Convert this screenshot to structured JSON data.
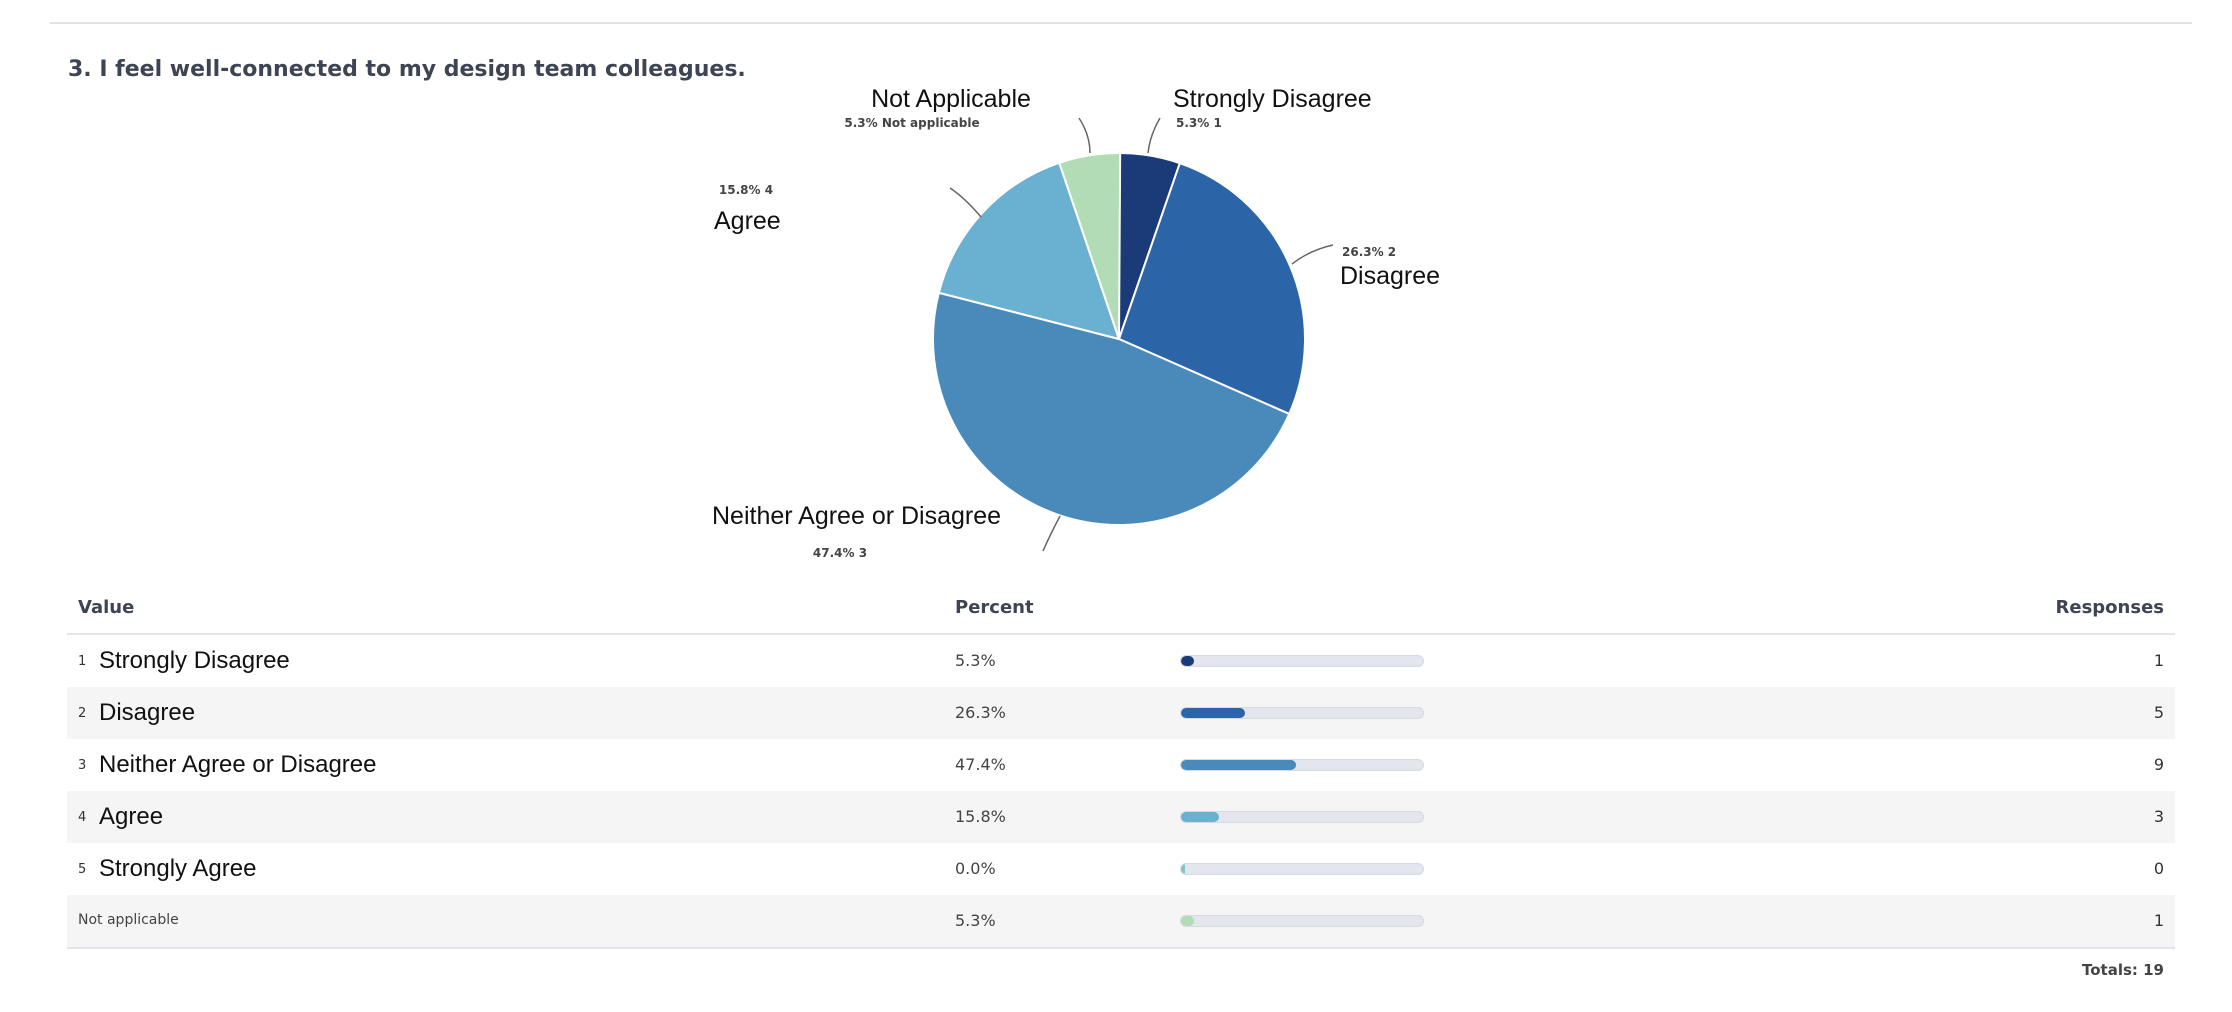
{
  "question": "3. I feel well-connected to my design team colleagues.",
  "chart_data": {
    "type": "pie",
    "start": "top",
    "direction": "clockwise",
    "slices": [
      {
        "label": "Strongly Disagree",
        "code": "1",
        "percent": 5.3,
        "detail": "5.3% 1",
        "color": "#1b3a78"
      },
      {
        "label": "Disagree",
        "code": "2",
        "percent": 26.3,
        "detail": "26.3% 2",
        "color": "#2b65a8"
      },
      {
        "label": "Neither Agree or Disagree",
        "code": "3",
        "percent": 47.4,
        "detail": "47.4% 3",
        "color": "#4a8aba"
      },
      {
        "label": "Agree",
        "code": "4",
        "percent": 15.8,
        "detail": "15.8% 4",
        "color": "#6ab0d0"
      },
      {
        "label": "Strongly Agree",
        "code": "5",
        "percent": 0.0,
        "detail": "",
        "color": "#7cc6c0"
      },
      {
        "label": "Not Applicable",
        "code": "Not applicable",
        "percent": 5.3,
        "detail": "5.3% Not applicable",
        "color": "#b2dcb5"
      }
    ]
  },
  "table": {
    "headers": {
      "value": "Value",
      "percent": "Percent",
      "responses": "Responses"
    },
    "rows": [
      {
        "num": "1",
        "label": "Strongly Disagree",
        "percent": "5.3%",
        "fraction": 0.053,
        "responses": "1",
        "color": "#1b3a78"
      },
      {
        "num": "2",
        "label": "Disagree",
        "percent": "26.3%",
        "fraction": 0.263,
        "responses": "5",
        "color": "#2b65a8"
      },
      {
        "num": "3",
        "label": "Neither Agree or Disagree",
        "percent": "47.4%",
        "fraction": 0.474,
        "responses": "9",
        "color": "#4a8aba"
      },
      {
        "num": "4",
        "label": "Agree",
        "percent": "15.8%",
        "fraction": 0.158,
        "responses": "3",
        "color": "#6ab0d0"
      },
      {
        "num": "5",
        "label": "Strongly Agree",
        "percent": "0.0%",
        "fraction": 0.0,
        "responses": "0",
        "color": "#7cc6c0"
      },
      {
        "num": "",
        "label": "Not applicable",
        "percent": "5.3%",
        "fraction": 0.053,
        "responses": "1",
        "color": "#b2dcb5"
      }
    ],
    "totals": "Totals: 19"
  }
}
